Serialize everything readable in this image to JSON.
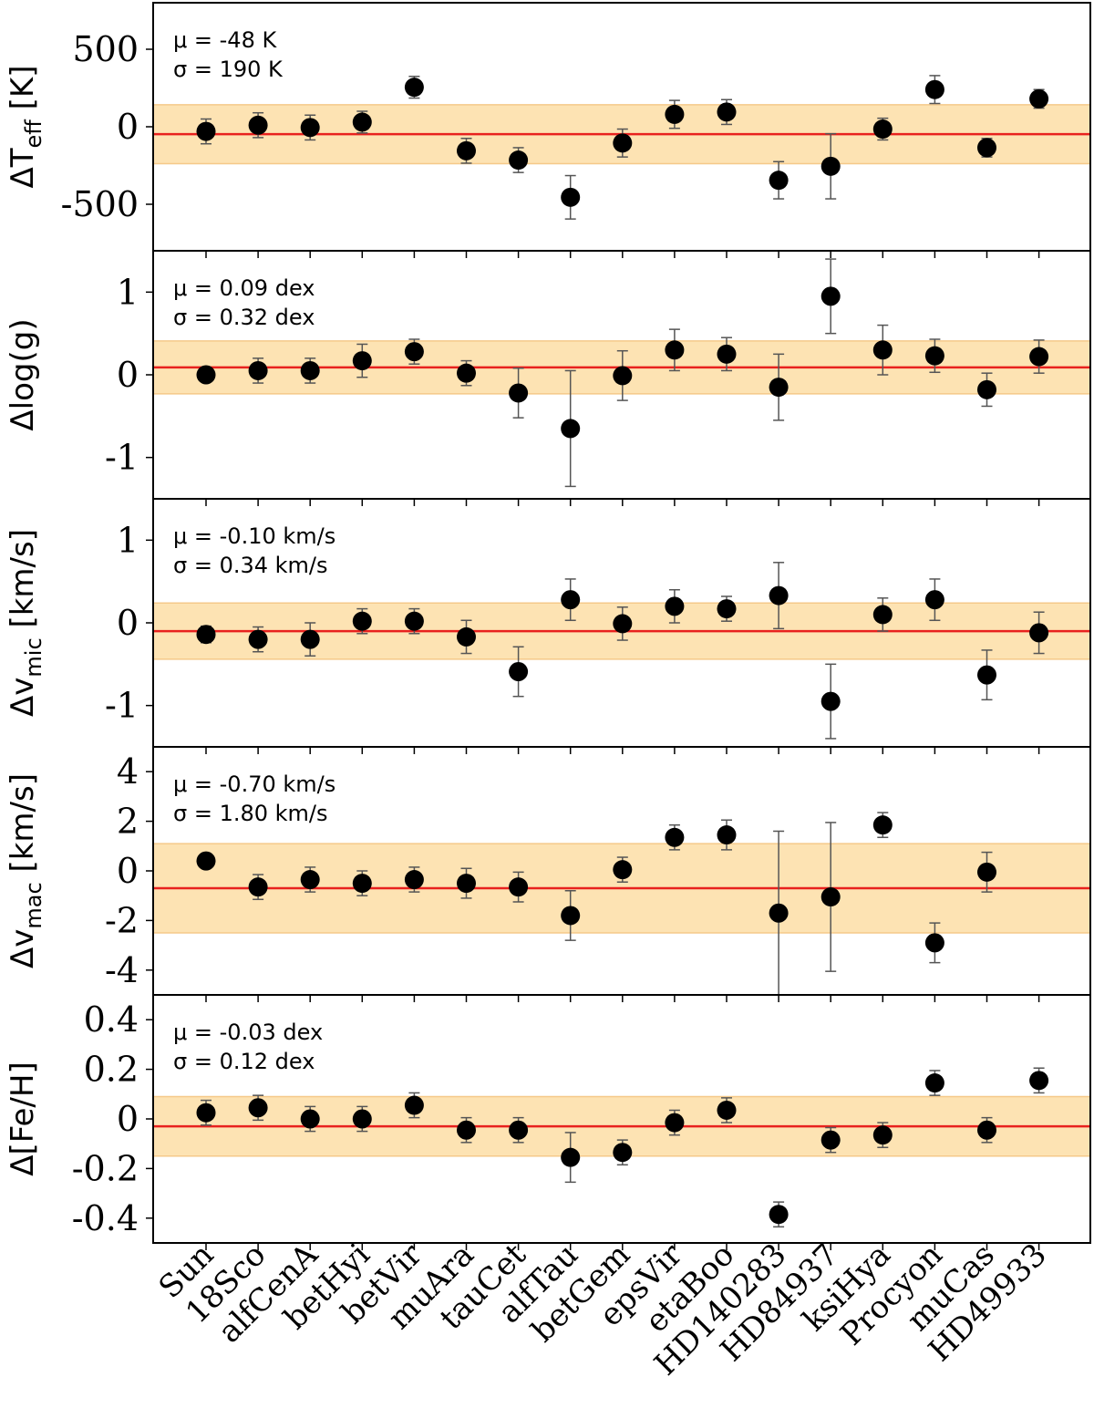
{
  "chart_data": {
    "type": "scatter",
    "categories": [
      "Sun",
      "18Sco",
      "alfCenA",
      "betHyi",
      "betVir",
      "muAra",
      "tauCet",
      "alfTau",
      "betGem",
      "epsVir",
      "etaBoo",
      "HD140283",
      "HD84937",
      "ksiHya",
      "Procyon",
      "muCas",
      "HD49933"
    ],
    "colors": {
      "mean_line": "#e8211e",
      "band": "#fde3b3",
      "band_edge": "#f5c98a",
      "points": "#000000",
      "errorbar": "#555555"
    },
    "panels": [
      {
        "ylabel_main": "ΔT",
        "ylabel_sub": "eff",
        "ylabel_tail": " [K]",
        "ylim": [
          -800,
          800
        ],
        "yticks": [
          500,
          0,
          -500
        ],
        "ytick_labels": [
          "500",
          "0",
          "-500"
        ],
        "mean": -48,
        "sigma": 190,
        "stat_mu": "μ = -48 K",
        "stat_sigma": "σ = 190 K",
        "values": [
          -30,
          10,
          -5,
          30,
          255,
          -155,
          -215,
          -455,
          -105,
          80,
          95,
          -345,
          -255,
          -15,
          240,
          -135,
          180
        ],
        "errors": [
          80,
          80,
          80,
          70,
          70,
          80,
          80,
          140,
          90,
          90,
          80,
          120,
          210,
          70,
          90,
          60,
          60
        ]
      },
      {
        "ylabel_main": "Δlog(g)",
        "ylabel_sub": "",
        "ylabel_tail": "",
        "ylim": [
          -1.5,
          1.5
        ],
        "yticks": [
          1,
          0,
          -1
        ],
        "ytick_labels": [
          "1",
          "0",
          "-1"
        ],
        "mean": 0.09,
        "sigma": 0.32,
        "stat_mu": "μ = 0.09 dex",
        "stat_sigma": "σ = 0.32 dex",
        "values": [
          0.0,
          0.05,
          0.05,
          0.17,
          0.28,
          0.02,
          -0.22,
          -0.65,
          -0.01,
          0.3,
          0.25,
          -0.15,
          0.95,
          0.3,
          0.23,
          -0.18,
          0.22
        ],
        "errors": [
          0.05,
          0.15,
          0.15,
          0.2,
          0.15,
          0.15,
          0.3,
          0.7,
          0.3,
          0.25,
          0.2,
          0.4,
          0.45,
          0.3,
          0.2,
          0.2,
          0.2
        ]
      },
      {
        "ylabel_main": "Δv",
        "ylabel_sub": "mic",
        "ylabel_tail": " [km/s]",
        "ylim": [
          -1.5,
          1.5
        ],
        "yticks": [
          1,
          0,
          -1
        ],
        "ytick_labels": [
          "1",
          "0",
          "-1"
        ],
        "mean": -0.1,
        "sigma": 0.34,
        "stat_mu": "μ = -0.10 km/s",
        "stat_sigma": "σ = 0.34 km/s",
        "values": [
          -0.14,
          -0.2,
          -0.2,
          0.02,
          0.02,
          -0.17,
          -0.59,
          0.28,
          -0.01,
          0.2,
          0.17,
          0.33,
          -0.95,
          0.1,
          0.28,
          -0.63,
          -0.12
        ],
        "errors": [
          0.1,
          0.15,
          0.2,
          0.15,
          0.15,
          0.2,
          0.3,
          0.25,
          0.2,
          0.2,
          0.15,
          0.4,
          0.45,
          0.2,
          0.25,
          0.3,
          0.25
        ]
      },
      {
        "ylabel_main": "Δv",
        "ylabel_sub": "mac",
        "ylabel_tail": " [km/s]",
        "ylim": [
          -5,
          5
        ],
        "yticks": [
          4,
          2,
          0,
          -2,
          -4
        ],
        "ytick_labels": [
          "4",
          "2",
          "0",
          "-2",
          "-4"
        ],
        "mean": -0.7,
        "sigma": 1.8,
        "stat_mu": "μ = -0.70 km/s",
        "stat_sigma": "σ = 1.80 km/s",
        "values": [
          0.4,
          -0.65,
          -0.35,
          -0.5,
          -0.35,
          -0.5,
          -0.65,
          -1.8,
          0.05,
          1.35,
          1.45,
          -1.7,
          -1.05,
          1.85,
          -2.9,
          -0.05,
          null
        ],
        "errors": [
          0.25,
          0.5,
          0.5,
          0.5,
          0.5,
          0.6,
          0.6,
          1.0,
          0.5,
          0.5,
          0.6,
          3.3,
          3.0,
          0.5,
          0.8,
          0.8,
          null
        ]
      },
      {
        "ylabel_main": "Δ[Fe/H]",
        "ylabel_sub": "",
        "ylabel_tail": "",
        "ylim": [
          -0.5,
          0.5
        ],
        "yticks": [
          0.4,
          0.2,
          0,
          -0.2,
          -0.4
        ],
        "ytick_labels": [
          "0.4",
          "0.2",
          "0",
          "-0.2",
          "-0.4"
        ],
        "mean": -0.03,
        "sigma": 0.12,
        "stat_mu": "μ = -0.03 dex",
        "stat_sigma": "σ = 0.12 dex",
        "values": [
          0.025,
          0.045,
          0.0,
          0.0,
          0.055,
          -0.045,
          -0.045,
          -0.155,
          -0.135,
          -0.015,
          0.035,
          -0.385,
          -0.085,
          -0.065,
          0.145,
          -0.045,
          0.155
        ],
        "errors": [
          0.05,
          0.05,
          0.05,
          0.05,
          0.05,
          0.05,
          0.05,
          0.1,
          0.05,
          0.05,
          0.05,
          0.05,
          0.05,
          0.05,
          0.05,
          0.05,
          0.05
        ]
      }
    ]
  }
}
